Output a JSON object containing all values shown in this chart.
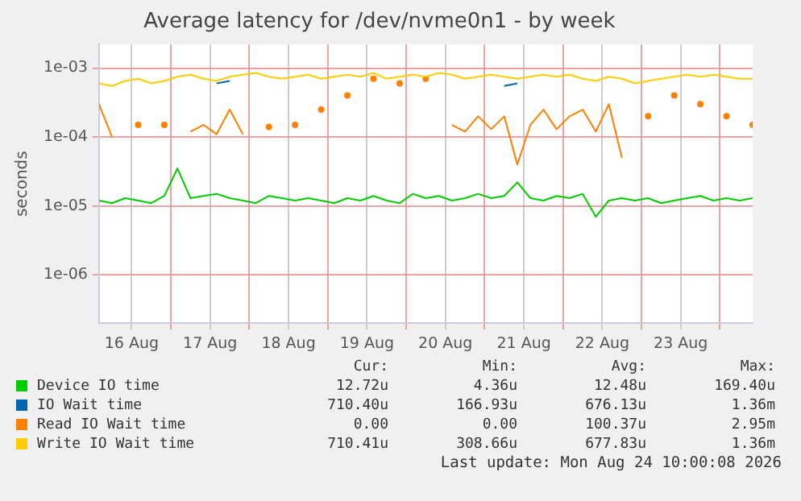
{
  "chart_data": {
    "type": "line",
    "title": "Average latency for /dev/nvme0n1 - by week",
    "ylabel": "seconds",
    "log": true,
    "grid": true,
    "legend": "bottom",
    "marker": "none",
    "xlim": [
      "2026-08-16T02:00",
      "2026-08-24T10:00"
    ],
    "xticks": [
      {
        "value": "2026-08-16T12:00",
        "label": "16 Aug"
      },
      {
        "value": "2026-08-17T00:00",
        "label": null
      },
      {
        "value": "2026-08-17T12:00",
        "label": "17 Aug"
      },
      {
        "value": "2026-08-18T00:00",
        "label": null
      },
      {
        "value": "2026-08-18T12:00",
        "label": "18 Aug"
      },
      {
        "value": "2026-08-19T00:00",
        "label": null
      },
      {
        "value": "2026-08-19T12:00",
        "label": "19 Aug"
      },
      {
        "value": "2026-08-20T00:00",
        "label": null
      },
      {
        "value": "2026-08-20T12:00",
        "label": "20 Aug"
      },
      {
        "value": "2026-08-21T00:00",
        "label": null
      },
      {
        "value": "2026-08-21T12:00",
        "label": "21 Aug"
      },
      {
        "value": "2026-08-22T00:00",
        "label": null
      },
      {
        "value": "2026-08-22T12:00",
        "label": "22 Aug"
      },
      {
        "value": "2026-08-23T00:00",
        "label": null
      },
      {
        "value": "2026-08-23T12:00",
        "label": "23 Aug"
      },
      {
        "value": "2026-08-24T00:00",
        "label": null
      }
    ],
    "ylim": [
      2e-07,
      0.0022
    ],
    "yticks": [
      {
        "value": 1e-06,
        "label": "1e-06"
      },
      {
        "value": 1e-05,
        "label": "1e-05"
      },
      {
        "value": 0.0001,
        "label": "1e-04"
      },
      {
        "value": 0.001,
        "label": "1e-03"
      }
    ],
    "x": [
      "2026-08-16T02:00",
      "2026-08-16T06:00",
      "2026-08-16T10:00",
      "2026-08-16T14:00",
      "2026-08-16T18:00",
      "2026-08-16T22:00",
      "2026-08-17T02:00",
      "2026-08-17T06:00",
      "2026-08-17T10:00",
      "2026-08-17T14:00",
      "2026-08-17T18:00",
      "2026-08-17T22:00",
      "2026-08-18T02:00",
      "2026-08-18T06:00",
      "2026-08-18T10:00",
      "2026-08-18T14:00",
      "2026-08-18T18:00",
      "2026-08-18T22:00",
      "2026-08-19T02:00",
      "2026-08-19T06:00",
      "2026-08-19T10:00",
      "2026-08-19T14:00",
      "2026-08-19T18:00",
      "2026-08-19T22:00",
      "2026-08-20T02:00",
      "2026-08-20T06:00",
      "2026-08-20T10:00",
      "2026-08-20T14:00",
      "2026-08-20T18:00",
      "2026-08-20T22:00",
      "2026-08-21T02:00",
      "2026-08-21T06:00",
      "2026-08-21T10:00",
      "2026-08-21T14:00",
      "2026-08-21T18:00",
      "2026-08-21T22:00",
      "2026-08-22T02:00",
      "2026-08-22T06:00",
      "2026-08-22T10:00",
      "2026-08-22T14:00",
      "2026-08-22T18:00",
      "2026-08-22T22:00",
      "2026-08-23T02:00",
      "2026-08-23T06:00",
      "2026-08-23T10:00",
      "2026-08-23T14:00",
      "2026-08-23T18:00",
      "2026-08-23T22:00",
      "2026-08-24T02:00",
      "2026-08-24T06:00",
      "2026-08-24T10:00"
    ],
    "series": [
      {
        "name": "Device IO time",
        "color": "#00cc00",
        "values": [
          1.2e-05,
          1.1e-05,
          1.3e-05,
          1.2e-05,
          1.1e-05,
          1.4e-05,
          3.5e-05,
          1.3e-05,
          1.4e-05,
          1.5e-05,
          1.3e-05,
          1.2e-05,
          1.1e-05,
          1.4e-05,
          1.3e-05,
          1.2e-05,
          1.3e-05,
          1.2e-05,
          1.1e-05,
          1.3e-05,
          1.2e-05,
          1.4e-05,
          1.2e-05,
          1.1e-05,
          1.5e-05,
          1.3e-05,
          1.4e-05,
          1.2e-05,
          1.3e-05,
          1.5e-05,
          1.3e-05,
          1.4e-05,
          2.2e-05,
          1.3e-05,
          1.2e-05,
          1.4e-05,
          1.3e-05,
          1.5e-05,
          7e-06,
          1.2e-05,
          1.3e-05,
          1.2e-05,
          1.3e-05,
          1.1e-05,
          1.2e-05,
          1.3e-05,
          1.4e-05,
          1.2e-05,
          1.3e-05,
          1.2e-05,
          1.3e-05
        ]
      },
      {
        "name": "IO Wait time",
        "color": "#0066b3",
        "values": [
          null,
          null,
          null,
          null,
          null,
          null,
          null,
          null,
          null,
          0.0006,
          0.00065,
          null,
          null,
          null,
          null,
          null,
          null,
          null,
          null,
          null,
          null,
          null,
          null,
          null,
          null,
          null,
          null,
          null,
          null,
          null,
          null,
          0.00055,
          0.0006,
          null,
          null,
          null,
          null,
          null,
          null,
          null,
          null,
          null,
          null,
          null,
          null,
          null,
          null,
          null,
          null,
          null,
          null
        ]
      },
      {
        "name": "Read IO Wait time",
        "color": "#ff8000",
        "values": [
          0.0003,
          0.0001,
          null,
          0.00015,
          null,
          0.00015,
          null,
          0.00012,
          0.00015,
          0.00011,
          0.00025,
          0.00011,
          null,
          0.00014,
          null,
          0.00015,
          null,
          0.00025,
          null,
          0.0004,
          null,
          0.0007,
          null,
          0.0006,
          null,
          0.0007,
          null,
          0.00015,
          0.00012,
          0.0002,
          0.00013,
          0.0002,
          4e-05,
          0.00015,
          0.00025,
          0.00013,
          0.0002,
          0.00025,
          0.00012,
          0.0003,
          5e-05,
          null,
          0.0002,
          null,
          0.0004,
          null,
          0.0003,
          null,
          0.0002,
          null,
          0.00015
        ]
      },
      {
        "name": "Write IO Wait time",
        "color": "#ffcc00",
        "values": [
          0.0006,
          0.00055,
          0.00065,
          0.0007,
          0.0006,
          0.00065,
          0.00075,
          0.0008,
          0.0007,
          0.00065,
          0.00075,
          0.0008,
          0.00085,
          0.00075,
          0.0007,
          0.00075,
          0.0008,
          0.0007,
          0.00075,
          0.0008,
          0.00075,
          0.00085,
          0.0007,
          0.00075,
          0.0008,
          0.00075,
          0.00085,
          0.0008,
          0.0007,
          0.00075,
          0.0008,
          0.00075,
          0.0007,
          0.00075,
          0.0008,
          0.00075,
          0.0008,
          0.0007,
          0.00065,
          0.00075,
          0.0007,
          0.0006,
          0.00065,
          0.0007,
          0.00075,
          0.0008,
          0.00075,
          0.0008,
          0.00075,
          0.0007,
          0.0007
        ]
      }
    ],
    "annotations": [
      "Cur:",
      "Min:",
      "Avg:",
      "Max:",
      "12.72u",
      "4.36u",
      "12.48u",
      "169.40u",
      "710.40u",
      "166.93u",
      "676.13u",
      "1.36m",
      "0.00",
      "0.00",
      "100.37u",
      "2.95m",
      "710.41u",
      "308.66u",
      "677.83u",
      "1.36m",
      "Last update: Mon Aug 24 10:00:08 2026"
    ]
  }
}
